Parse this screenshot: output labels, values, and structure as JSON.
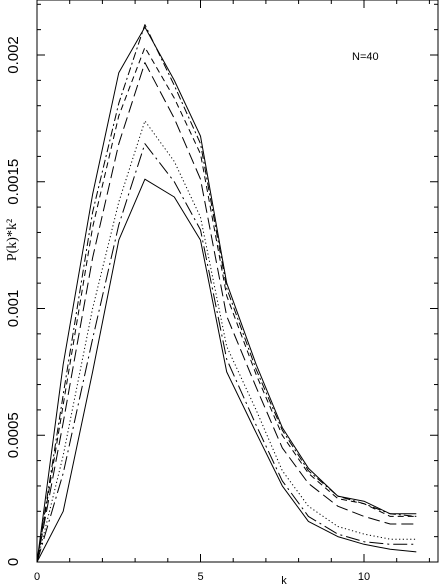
{
  "chart_data": {
    "type": "line",
    "title": "",
    "xlabel": "k",
    "ylabel": "P(k)*k²",
    "annotation": "N=40",
    "xlim": [
      0,
      12
    ],
    "ylim": [
      0,
      0.0022
    ],
    "grid": false,
    "legend": "none",
    "xticks": [
      {
        "value": 0,
        "label": "0"
      },
      {
        "value": 5,
        "label": "5"
      },
      {
        "value": 10,
        "label": "10"
      }
    ],
    "yticks": [
      {
        "value": 0,
        "label": "0"
      },
      {
        "value": 0.0005,
        "label": "0.0005"
      },
      {
        "value": 0.001,
        "label": "0.001"
      },
      {
        "value": 0.0015,
        "label": "0.0015"
      },
      {
        "value": 0.002,
        "label": "0.002"
      }
    ],
    "x": [
      0,
      0.8,
      1.7,
      2.5,
      3.3,
      4.2,
      5.0,
      5.8,
      6.7,
      7.5,
      8.3,
      9.2,
      10.0,
      10.8,
      11.6
    ],
    "series": [
      {
        "style": "solid",
        "values": [
          0,
          0.00078,
          0.00145,
          0.00193,
          0.00211,
          0.0019,
          0.00168,
          0.0011,
          0.00078,
          0.00053,
          0.00037,
          0.00026,
          0.00024,
          0.00019,
          0.00019
        ]
      },
      {
        "style": "dash-dot",
        "values": [
          0,
          0.00066,
          0.00138,
          0.00181,
          0.00212,
          0.00188,
          0.00165,
          0.00108,
          0.00076,
          0.00052,
          0.00036,
          0.00026,
          0.00023,
          0.00019,
          0.00018
        ]
      },
      {
        "style": "short-dash",
        "values": [
          0,
          0.00062,
          0.00132,
          0.00176,
          0.00203,
          0.00183,
          0.00161,
          0.00105,
          0.00074,
          0.0005,
          0.00035,
          0.00025,
          0.00023,
          0.00018,
          0.00018
        ]
      },
      {
        "style": "long-dash",
        "values": [
          0,
          0.00055,
          0.0012,
          0.00165,
          0.00197,
          0.00175,
          0.00151,
          0.00097,
          0.00069,
          0.00045,
          0.00031,
          0.00022,
          0.00018,
          0.00015,
          0.00015
        ]
      },
      {
        "style": "dotted",
        "values": [
          0,
          0.00042,
          0.001,
          0.00142,
          0.00174,
          0.00158,
          0.00136,
          0.00085,
          0.0006,
          0.00036,
          0.00022,
          0.00014,
          0.00011,
          9e-05,
          9e-05
        ]
      },
      {
        "style": "dash-dot-long",
        "values": [
          0,
          0.00035,
          0.00088,
          0.00133,
          0.00165,
          0.0015,
          0.00131,
          0.0008,
          0.00054,
          0.00032,
          0.00018,
          0.00011,
          8e-05,
          7e-05,
          7e-05
        ]
      },
      {
        "style": "solid",
        "values": [
          0,
          0.0002,
          0.00075,
          0.00127,
          0.00151,
          0.00144,
          0.00127,
          0.00075,
          0.00051,
          0.0003,
          0.00016,
          0.0001,
          7e-05,
          5e-05,
          4e-05
        ]
      }
    ]
  }
}
